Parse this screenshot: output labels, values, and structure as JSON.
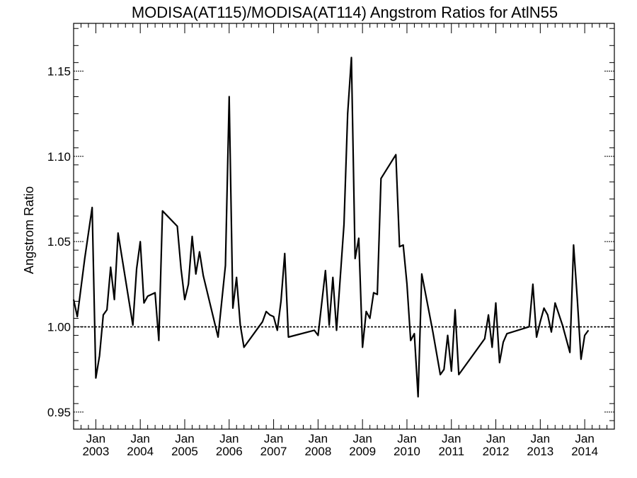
{
  "chart_data": {
    "type": "line",
    "title": "MODISA(AT115)/MODISA(AT114)  Angstrom Ratios for AtlN55",
    "xlabel": "",
    "ylabel": "Angstrom Ratio",
    "xlim": [
      "2002-07-01",
      "2014-09-01"
    ],
    "ylim": [
      0.94,
      1.178
    ],
    "y_ticks": [
      {
        "value": 0.95,
        "label": "0.95"
      },
      {
        "value": 1.0,
        "label": "1.00"
      },
      {
        "value": 1.05,
        "label": "1.05"
      },
      {
        "value": 1.1,
        "label": "1.10"
      },
      {
        "value": 1.15,
        "label": "1.15"
      }
    ],
    "x_ticks": [
      {
        "date": "2003-01-01",
        "month": "Jan",
        "year": "2003"
      },
      {
        "date": "2004-01-01",
        "month": "Jan",
        "year": "2004"
      },
      {
        "date": "2005-01-01",
        "month": "Jan",
        "year": "2005"
      },
      {
        "date": "2006-01-01",
        "month": "Jan",
        "year": "2006"
      },
      {
        "date": "2007-01-01",
        "month": "Jan",
        "year": "2007"
      },
      {
        "date": "2008-01-01",
        "month": "Jan",
        "year": "2008"
      },
      {
        "date": "2009-01-01",
        "month": "Jan",
        "year": "2009"
      },
      {
        "date": "2010-01-01",
        "month": "Jan",
        "year": "2010"
      },
      {
        "date": "2011-01-01",
        "month": "Jan",
        "year": "2011"
      },
      {
        "date": "2012-01-01",
        "month": "Jan",
        "year": "2012"
      },
      {
        "date": "2013-01-01",
        "month": "Jan",
        "year": "2013"
      },
      {
        "date": "2014-01-01",
        "month": "Jan",
        "year": "2014"
      }
    ],
    "reference_line": 1.0,
    "series": [
      {
        "color": "#000000",
        "points": [
          [
            "2002-07-01",
            1.016
          ],
          [
            "2002-08-01",
            1.006
          ],
          [
            "2002-10-01",
            1.04
          ],
          [
            "2002-12-01",
            1.07
          ],
          [
            "2003-01-01",
            0.97
          ],
          [
            "2003-02-01",
            0.983
          ],
          [
            "2003-03-01",
            1.007
          ],
          [
            "2003-04-01",
            1.01
          ],
          [
            "2003-05-01",
            1.035
          ],
          [
            "2003-06-01",
            1.016
          ],
          [
            "2003-07-01",
            1.055
          ],
          [
            "2003-11-01",
            1.001
          ],
          [
            "2003-12-01",
            1.034
          ],
          [
            "2004-01-01",
            1.05
          ],
          [
            "2004-02-01",
            1.014
          ],
          [
            "2004-03-01",
            1.018
          ],
          [
            "2004-05-01",
            1.02
          ],
          [
            "2004-06-01",
            0.992
          ],
          [
            "2004-07-01",
            1.068
          ],
          [
            "2004-11-01",
            1.059
          ],
          [
            "2004-12-01",
            1.034
          ],
          [
            "2005-01-01",
            1.016
          ],
          [
            "2005-02-01",
            1.025
          ],
          [
            "2005-03-01",
            1.053
          ],
          [
            "2005-04-01",
            1.031
          ],
          [
            "2005-05-01",
            1.044
          ],
          [
            "2005-06-01",
            1.03
          ],
          [
            "2005-10-01",
            0.994
          ],
          [
            "2005-12-01",
            1.036
          ],
          [
            "2006-01-01",
            1.135
          ],
          [
            "2006-02-01",
            1.011
          ],
          [
            "2006-03-01",
            1.029
          ],
          [
            "2006-04-01",
            1.001
          ],
          [
            "2006-05-01",
            0.988
          ],
          [
            "2006-10-01",
            1.003
          ],
          [
            "2006-11-01",
            1.009
          ],
          [
            "2006-12-01",
            1.007
          ],
          [
            "2007-01-01",
            1.006
          ],
          [
            "2007-02-01",
            0.998
          ],
          [
            "2007-03-01",
            1.015
          ],
          [
            "2007-04-01",
            1.043
          ],
          [
            "2007-05-01",
            0.994
          ],
          [
            "2007-12-01",
            0.998
          ],
          [
            "2008-01-01",
            0.995
          ],
          [
            "2008-03-01",
            1.033
          ],
          [
            "2008-04-01",
            1.001
          ],
          [
            "2008-05-01",
            1.029
          ],
          [
            "2008-06-01",
            0.998
          ],
          [
            "2008-08-01",
            1.06
          ],
          [
            "2008-09-01",
            1.125
          ],
          [
            "2008-10-01",
            1.158
          ],
          [
            "2008-11-01",
            1.04
          ],
          [
            "2008-12-01",
            1.052
          ],
          [
            "2009-01-01",
            0.988
          ],
          [
            "2009-02-01",
            1.009
          ],
          [
            "2009-03-01",
            1.005
          ],
          [
            "2009-04-01",
            1.02
          ],
          [
            "2009-05-01",
            1.019
          ],
          [
            "2009-06-01",
            1.087
          ],
          [
            "2009-10-01",
            1.101
          ],
          [
            "2009-11-01",
            1.047
          ],
          [
            "2009-12-01",
            1.048
          ],
          [
            "2010-01-01",
            1.025
          ],
          [
            "2010-02-01",
            0.992
          ],
          [
            "2010-03-01",
            0.996
          ],
          [
            "2010-04-01",
            0.959
          ],
          [
            "2010-05-01",
            1.031
          ],
          [
            "2010-08-01",
            0.997
          ],
          [
            "2010-10-01",
            0.972
          ],
          [
            "2010-11-01",
            0.975
          ],
          [
            "2010-12-01",
            0.995
          ],
          [
            "2011-01-01",
            0.974
          ],
          [
            "2011-02-01",
            1.01
          ],
          [
            "2011-03-01",
            0.972
          ],
          [
            "2011-10-01",
            0.993
          ],
          [
            "2011-11-01",
            1.007
          ],
          [
            "2011-12-01",
            0.988
          ],
          [
            "2012-01-01",
            1.014
          ],
          [
            "2012-02-01",
            0.979
          ],
          [
            "2012-03-01",
            0.991
          ],
          [
            "2012-04-01",
            0.996
          ],
          [
            "2012-10-01",
            1.0
          ],
          [
            "2012-11-01",
            1.025
          ],
          [
            "2012-12-01",
            0.994
          ],
          [
            "2013-01-01",
            1.003
          ],
          [
            "2013-02-01",
            1.011
          ],
          [
            "2013-03-01",
            1.007
          ],
          [
            "2013-04-01",
            0.997
          ],
          [
            "2013-05-01",
            1.014
          ],
          [
            "2013-07-01",
            1.001
          ],
          [
            "2013-09-01",
            0.985
          ],
          [
            "2013-10-01",
            1.048
          ],
          [
            "2013-11-01",
            1.016
          ],
          [
            "2013-12-01",
            0.981
          ],
          [
            "2014-01-01",
            0.995
          ],
          [
            "2014-02-01",
            0.998
          ]
        ]
      }
    ]
  }
}
